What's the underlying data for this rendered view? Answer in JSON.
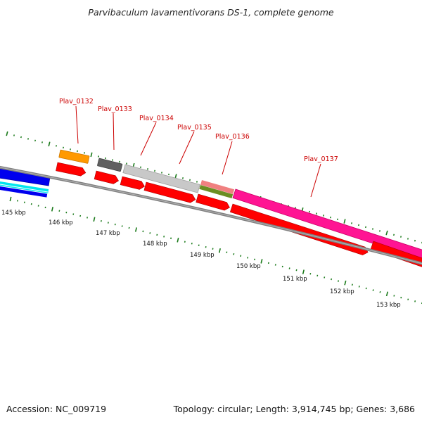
{
  "title": "Parvibaculum lavamentivorans DS-1, complete genome",
  "footer": {
    "accession": "Accession: NC_009719",
    "summary": "Topology: circular; Length: 3,914,745 bp; Genes: 3,686"
  },
  "colors": {
    "backbone": "#808080",
    "tick": "#1a7a1a",
    "gene_label": "#cc0000",
    "cds_red": "#ff0000",
    "orange": "#ff9900",
    "dark_gray": "#606060",
    "light_gray": "#c8c8c8",
    "salmon": "#f08080",
    "olive": "#6b8e23",
    "magenta": "#ff1493",
    "blue": "#0000ee",
    "cyan": "#00e5ee"
  },
  "genes": [
    {
      "name": "Plav_0132"
    },
    {
      "name": "Plav_0133"
    },
    {
      "name": "Plav_0134"
    },
    {
      "name": "Plav_0135"
    },
    {
      "name": "Plav_0136"
    },
    {
      "name": "Plav_0137"
    }
  ],
  "scale_labels": [
    "145 kbp",
    "146 kbp",
    "147 kbp",
    "148 kbp",
    "149 kbp",
    "150 kbp",
    "151 kbp",
    "152 kbp",
    "153 kbp"
  ]
}
